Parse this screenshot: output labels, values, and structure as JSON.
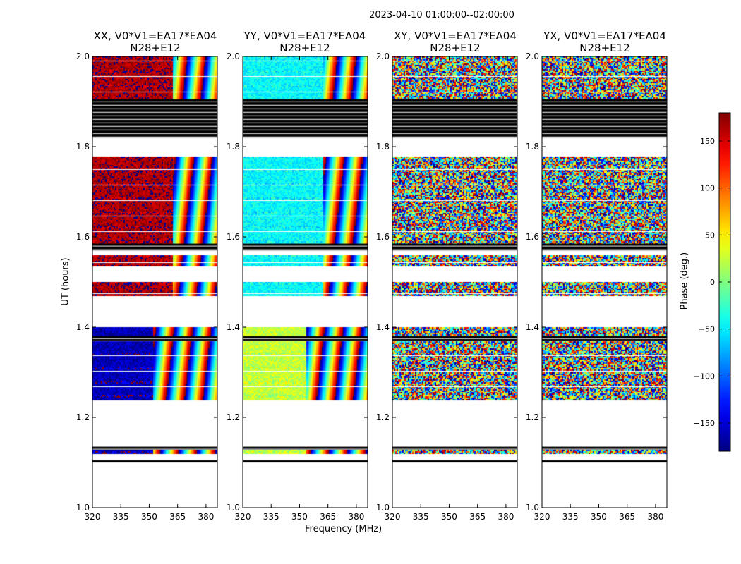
{
  "figure": {
    "suptitle": "2023-04-10  01:00:00--02:00:00",
    "xlabel": "Frequency (MHz)",
    "ylabel": "UT (hours)",
    "colorbar_label": "Phase (deg.)"
  },
  "chart_data": {
    "type": "heatmap",
    "x": {
      "label": "Frequency (MHz)",
      "lim": [
        320,
        386
      ],
      "ticks": [
        320,
        335,
        350,
        365,
        380
      ]
    },
    "y": {
      "label": "UT (hours)",
      "lim": [
        1.0,
        2.0
      ],
      "ticks": [
        1.0,
        1.2,
        1.4,
        1.6,
        1.8,
        2.0
      ]
    },
    "colorbar": {
      "label": "Phase (deg.)",
      "range": [
        -180,
        180
      ],
      "ticks": [
        -150,
        -100,
        -50,
        0,
        50,
        100,
        150
      ],
      "colormap": "jet"
    },
    "panels": [
      {
        "id": "XX",
        "title_line1": "XX, V0*V1=EA17*EA04",
        "title_line2": "N28+E12",
        "mean_phase": 165,
        "spread": 40,
        "coherent_until_mhz": 362,
        "low_coherent_until_mhz": 352,
        "low_mean_phase": -160
      },
      {
        "id": "YY",
        "title_line1": "YY, V0*V1=EA17*EA04",
        "title_line2": "N28+E12",
        "mean_phase": -45,
        "spread": 40,
        "coherent_until_mhz": 362,
        "low_coherent_until_mhz": 353,
        "low_mean_phase": 25
      },
      {
        "id": "XY",
        "title_line1": "XY, V0*V1=EA17*EA04",
        "title_line2": "N28+E12",
        "mean_phase": 0,
        "spread": 180,
        "coherent_until_mhz": 320,
        "low_coherent_until_mhz": 320,
        "low_mean_phase": 0
      },
      {
        "id": "YX",
        "title_line1": "YX, V0*V1=EA17*EA04",
        "title_line2": "N28+E12",
        "mean_phase": 0,
        "spread": 180,
        "coherent_until_mhz": 320,
        "low_coherent_until_mhz": 320,
        "low_mean_phase": 0
      }
    ],
    "data_segments_ut": [
      [
        1.12,
        1.135
      ],
      [
        1.24,
        1.37
      ],
      [
        1.38,
        1.4
      ],
      [
        1.47,
        1.5
      ],
      [
        1.535,
        1.56
      ],
      [
        1.585,
        1.78
      ],
      [
        1.905,
        2.0
      ]
    ],
    "flagged_black_ut": [
      [
        1.1,
        1.105
      ],
      [
        1.128,
        1.135
      ],
      [
        1.37,
        1.38
      ],
      [
        1.57,
        1.585
      ],
      [
        1.82,
        1.905
      ]
    ],
    "blank_gaps_ut": [
      [
        1.0,
        1.1
      ],
      [
        1.405,
        1.465
      ],
      [
        1.5,
        1.535
      ],
      [
        1.78,
        1.82
      ]
    ]
  }
}
